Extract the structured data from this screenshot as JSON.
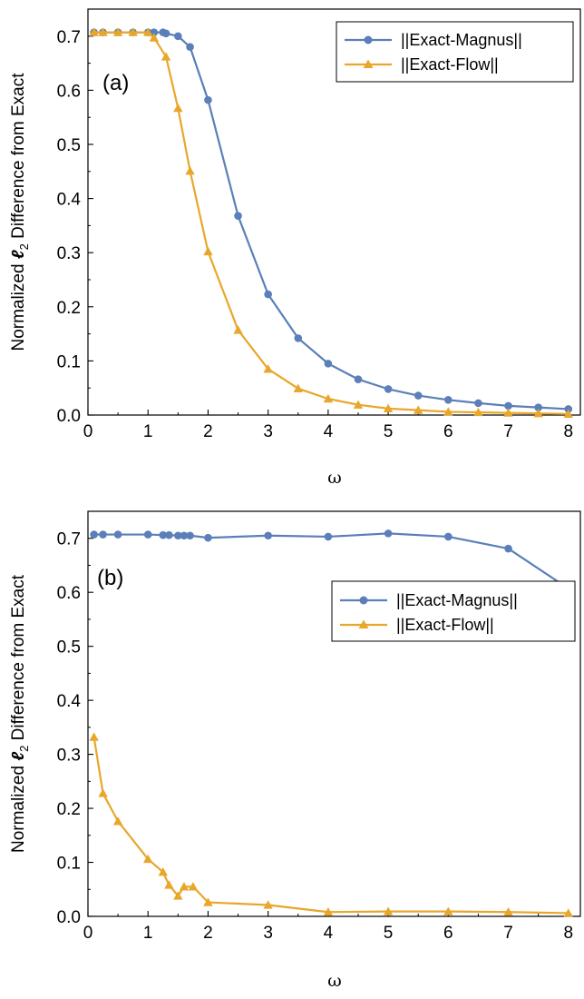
{
  "chart_data": [
    {
      "type": "line",
      "panel_label": "(a)",
      "xlabel": "ω",
      "ylabel_parts": [
        "Normalized ",
        "ℓ",
        "2",
        " Difference from Exact"
      ],
      "xlim": [
        0,
        8.2
      ],
      "ylim": [
        0,
        0.75
      ],
      "xticks": [
        0,
        1,
        2,
        3,
        4,
        5,
        6,
        7,
        8
      ],
      "yticks": [
        0.0,
        0.1,
        0.2,
        0.3,
        0.4,
        0.5,
        0.6,
        0.7
      ],
      "grid": false,
      "legend_position": "top-right",
      "series": [
        {
          "name": "||Exact-Magnus||",
          "color": "#5b7fb8",
          "marker": "circle",
          "x": [
            0.1,
            0.25,
            0.5,
            0.75,
            1.0,
            1.1,
            1.25,
            1.3,
            1.5,
            1.7,
            2.0,
            2.5,
            3.0,
            3.5,
            4.0,
            4.5,
            5.0,
            5.5,
            6.0,
            6.5,
            7.0,
            7.5,
            8.0
          ],
          "y": [
            0.707,
            0.707,
            0.707,
            0.707,
            0.707,
            0.707,
            0.707,
            0.705,
            0.7,
            0.68,
            0.582,
            0.368,
            0.223,
            0.142,
            0.095,
            0.066,
            0.048,
            0.036,
            0.028,
            0.022,
            0.017,
            0.014,
            0.011
          ]
        },
        {
          "name": "||Exact-Flow||",
          "color": "#e8a72b",
          "marker": "triangle",
          "x": [
            0.1,
            0.25,
            0.5,
            0.75,
            1.0,
            1.1,
            1.3,
            1.5,
            1.7,
            2.0,
            2.5,
            3.0,
            3.5,
            4.0,
            4.5,
            5.0,
            5.5,
            6.0,
            6.5,
            7.0,
            7.5,
            8.0
          ],
          "y": [
            0.707,
            0.707,
            0.707,
            0.707,
            0.707,
            0.697,
            0.662,
            0.567,
            0.451,
            0.302,
            0.157,
            0.085,
            0.049,
            0.03,
            0.019,
            0.012,
            0.009,
            0.006,
            0.005,
            0.004,
            0.003,
            0.002
          ]
        }
      ]
    },
    {
      "type": "line",
      "panel_label": "(b)",
      "xlabel": "ω",
      "ylabel_parts": [
        "Normalized ",
        "ℓ",
        "2",
        " Difference from Exact"
      ],
      "xlim": [
        0,
        8.2
      ],
      "ylim": [
        0,
        0.75
      ],
      "xticks": [
        0,
        1,
        2,
        3,
        4,
        5,
        6,
        7,
        8
      ],
      "yticks": [
        0.0,
        0.1,
        0.2,
        0.3,
        0.4,
        0.5,
        0.6,
        0.7
      ],
      "grid": false,
      "legend_position": "center-right",
      "series": [
        {
          "name": "||Exact-Magnus||",
          "color": "#5b7fb8",
          "marker": "circle",
          "x": [
            0.1,
            0.25,
            0.5,
            1.0,
            1.25,
            1.35,
            1.5,
            1.6,
            1.7,
            2.0,
            3.0,
            4.0,
            5.0,
            6.0,
            7.0,
            8.0
          ],
          "y": [
            0.707,
            0.707,
            0.707,
            0.707,
            0.706,
            0.706,
            0.705,
            0.705,
            0.705,
            0.701,
            0.705,
            0.703,
            0.709,
            0.703,
            0.681,
            0.607
          ]
        },
        {
          "name": "||Exact-Flow||",
          "color": "#e8a72b",
          "marker": "triangle",
          "x": [
            0.1,
            0.25,
            0.5,
            1.0,
            1.25,
            1.35,
            1.5,
            1.6,
            1.75,
            2.0,
            3.0,
            4.0,
            5.0,
            6.0,
            7.0,
            8.0
          ],
          "y": [
            0.332,
            0.228,
            0.176,
            0.106,
            0.082,
            0.058,
            0.038,
            0.055,
            0.055,
            0.026,
            0.021,
            0.008,
            0.009,
            0.009,
            0.008,
            0.006
          ]
        }
      ]
    }
  ]
}
